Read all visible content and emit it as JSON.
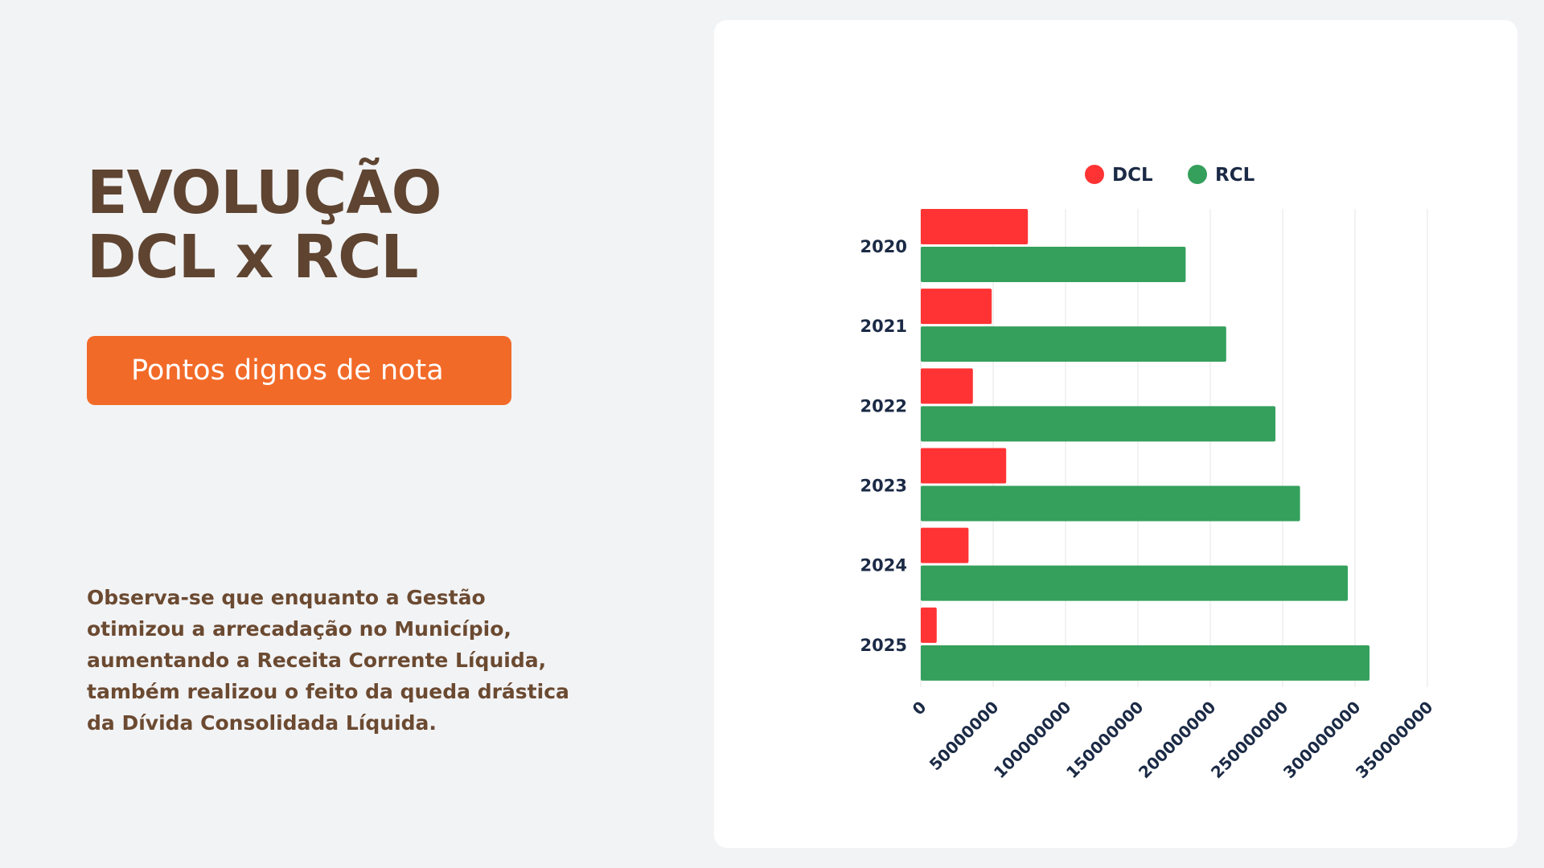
{
  "title_lines": [
    "EVOLUÇÃO",
    "DCL x RCL"
  ],
  "badge_text": "Pontos dignos de nota",
  "paragraph": "Observa-se que enquanto a Gestão otimizou a arrecadação no Município, aumentando a Receita Corrente Líquida, também realizou o feito da queda drástica da Dívida Consolidada Líquida.",
  "colors": {
    "title": "#5e4431",
    "badge": "#f26a28",
    "paragraph": "#6b4a31",
    "dcl": "#ff3333",
    "rcl": "#34a05c",
    "axis_text": "#1b2a45",
    "grid": "#e6e6e6"
  },
  "chart_data": {
    "type": "bar",
    "orientation": "horizontal",
    "categories": [
      "2020",
      "2021",
      "2022",
      "2023",
      "2024",
      "2025"
    ],
    "series": [
      {
        "name": "DCL",
        "color": "#ff3333",
        "values": [
          74000000,
          49000000,
          36000000,
          59000000,
          33000000,
          11000000
        ]
      },
      {
        "name": "RCL",
        "color": "#34a05c",
        "values": [
          183000000,
          211000000,
          245000000,
          262000000,
          295000000,
          310000000
        ]
      }
    ],
    "xlim": [
      0,
      350000000
    ],
    "xticks": [
      "0",
      "50000000",
      "100000000",
      "150000000",
      "200000000",
      "250000000",
      "300000000",
      "350000000"
    ],
    "grid": true,
    "legend": "top"
  }
}
